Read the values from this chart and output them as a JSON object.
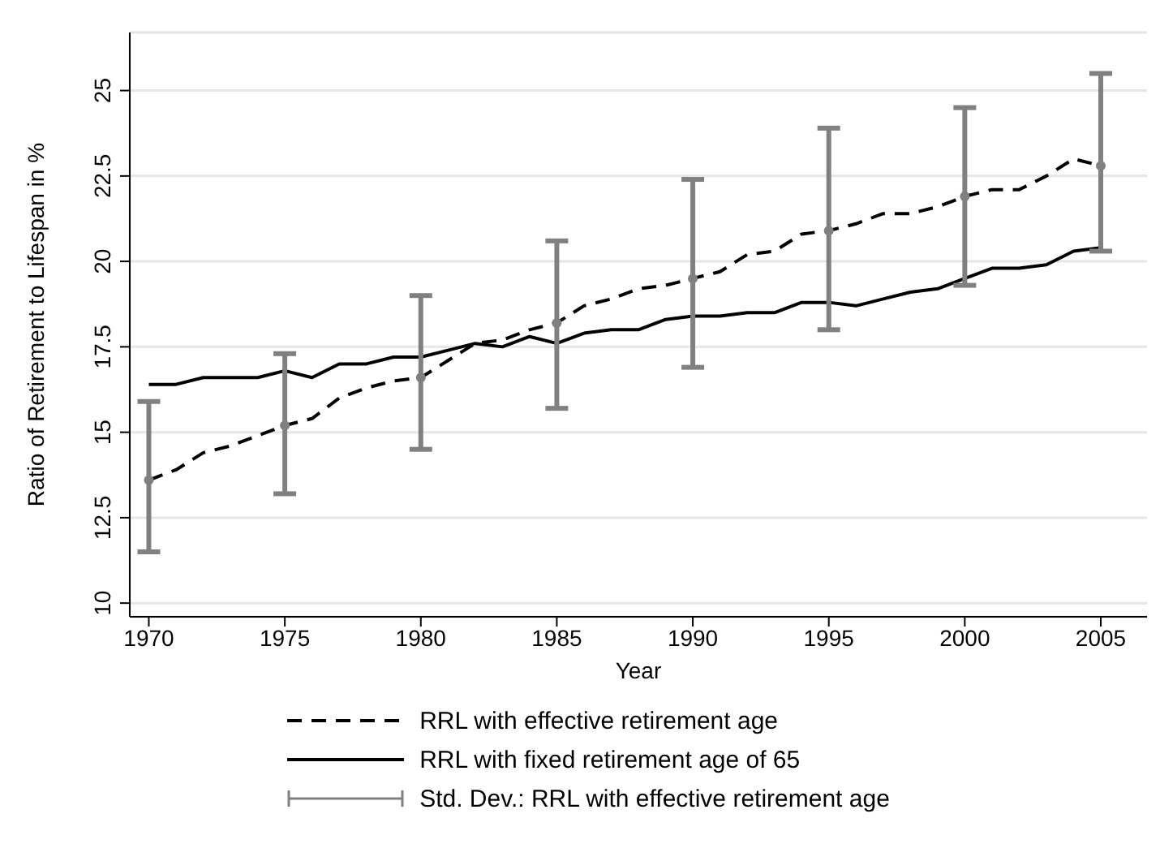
{
  "chart_data": {
    "type": "line",
    "xlabel": "Year",
    "ylabel": "Ratio of Retirement to Lifespan in %",
    "x": [
      1970,
      1971,
      1972,
      1973,
      1974,
      1975,
      1976,
      1977,
      1978,
      1979,
      1980,
      1981,
      1982,
      1983,
      1984,
      1985,
      1986,
      1987,
      1988,
      1989,
      1990,
      1991,
      1992,
      1993,
      1994,
      1995,
      1996,
      1997,
      1998,
      1999,
      2000,
      2001,
      2002,
      2003,
      2004,
      2005
    ],
    "series": [
      {
        "name": "RRL with effective retirement age",
        "color": "#000000",
        "line_style": "dashed",
        "values": [
          13.6,
          13.9,
          14.4,
          14.6,
          14.9,
          15.2,
          15.4,
          16.0,
          16.3,
          16.5,
          16.6,
          17.1,
          17.6,
          17.7,
          18.0,
          18.2,
          18.7,
          18.9,
          19.2,
          19.3,
          19.5,
          19.7,
          20.2,
          20.3,
          20.8,
          20.9,
          21.1,
          21.4,
          21.4,
          21.6,
          21.9,
          22.1,
          22.1,
          22.5,
          23.0,
          22.8
        ]
      },
      {
        "name": "RRL with fixed retirement age of 65",
        "color": "#000000",
        "line_style": "solid",
        "values": [
          16.4,
          16.4,
          16.6,
          16.6,
          16.6,
          16.8,
          16.6,
          17.0,
          17.0,
          17.2,
          17.2,
          17.4,
          17.6,
          17.5,
          17.8,
          17.6,
          17.9,
          18.0,
          18.0,
          18.3,
          18.4,
          18.4,
          18.5,
          18.5,
          18.8,
          18.8,
          18.7,
          18.9,
          19.1,
          19.2,
          19.5,
          19.8,
          19.8,
          19.9,
          20.3,
          20.4
        ]
      },
      {
        "name": "Std. Dev.: RRL with effective retirement age",
        "type": "scatter",
        "color": "#808080",
        "x": [
          1970,
          1975,
          1980,
          1985,
          1990,
          1995,
          2000,
          2005
        ],
        "values": [
          13.6,
          15.2,
          16.6,
          18.2,
          19.5,
          20.9,
          21.9,
          22.8
        ],
        "errors": [
          [
            11.5,
            15.9
          ],
          [
            13.2,
            17.3
          ],
          [
            14.5,
            19.0
          ],
          [
            15.7,
            20.6
          ],
          [
            16.9,
            22.4
          ],
          [
            18.0,
            23.9
          ],
          [
            19.3,
            24.5
          ],
          [
            20.3,
            25.5
          ]
        ]
      }
    ],
    "xlim": [
      1969.3,
      2006.7
    ],
    "xticks": [
      1970,
      1975,
      1980,
      1985,
      1990,
      1995,
      2000,
      2005
    ],
    "ylim": [
      9.6,
      26.7
    ],
    "yticks": [
      10,
      12.5,
      15,
      17.5,
      20,
      22.5,
      25
    ],
    "grid": "y",
    "legend": "bottom"
  }
}
